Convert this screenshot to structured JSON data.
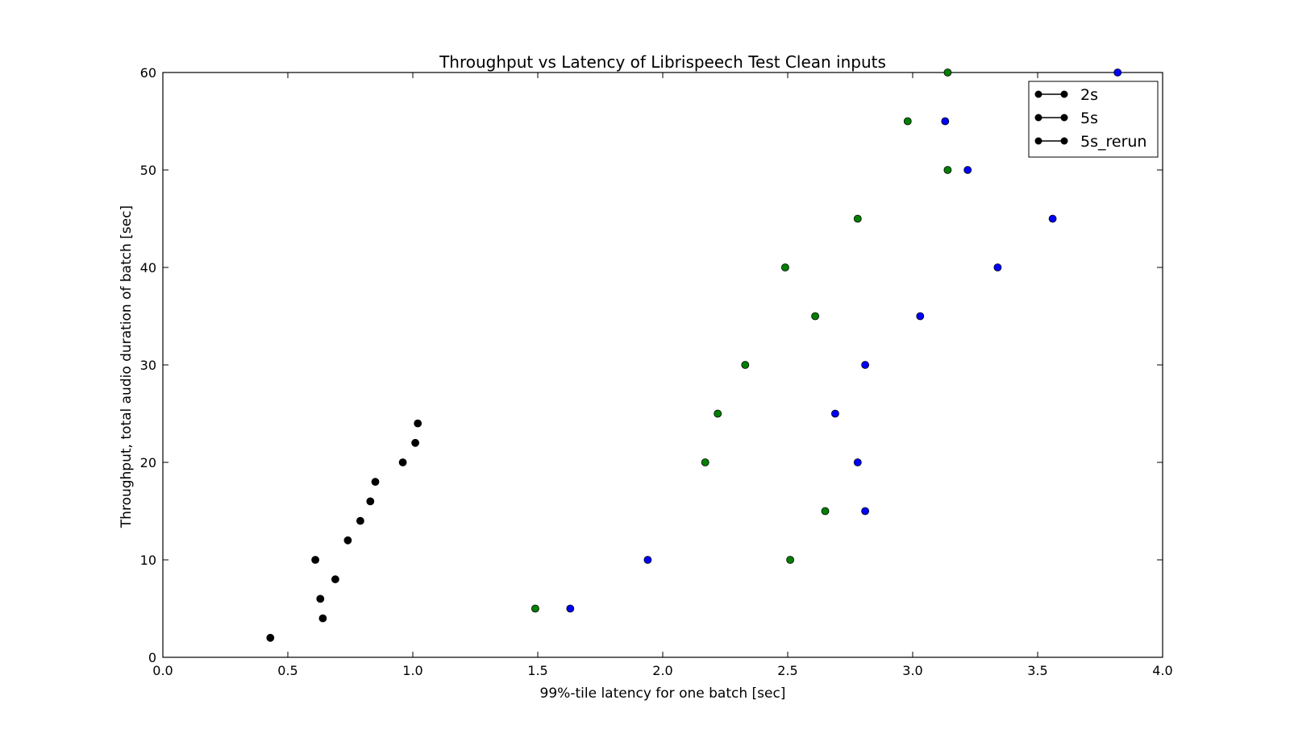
{
  "chart_data": {
    "type": "scatter",
    "title": "Throughput vs Latency of Librispeech Test Clean inputs",
    "xlabel": "99%-tile latency for one batch [sec]",
    "ylabel": "Throughput, total audio duration of batch [sec]",
    "xlim": [
      0.0,
      4.0
    ],
    "ylim": [
      0,
      60
    ],
    "xticks": [
      "0.0",
      "0.5",
      "1.0",
      "1.5",
      "2.0",
      "2.5",
      "3.0",
      "3.5",
      "4.0"
    ],
    "yticks": [
      "0",
      "10",
      "20",
      "30",
      "40",
      "50",
      "60"
    ],
    "grid": false,
    "legend_position": "top-right",
    "legend_marker_color": "#000000",
    "series": [
      {
        "name": "2s",
        "color": "#000000",
        "points": [
          [
            0.43,
            2
          ],
          [
            0.64,
            4
          ],
          [
            0.63,
            6
          ],
          [
            0.69,
            8
          ],
          [
            0.61,
            10
          ],
          [
            0.74,
            12
          ],
          [
            0.79,
            14
          ],
          [
            0.83,
            16
          ],
          [
            0.85,
            18
          ],
          [
            0.96,
            20
          ],
          [
            1.01,
            22
          ],
          [
            1.02,
            24
          ]
        ]
      },
      {
        "name": "5s",
        "color": "#0000ff",
        "points": [
          [
            1.63,
            5
          ],
          [
            1.94,
            10
          ],
          [
            2.81,
            15
          ],
          [
            2.78,
            20
          ],
          [
            2.69,
            25
          ],
          [
            2.81,
            30
          ],
          [
            3.03,
            35
          ],
          [
            3.34,
            40
          ],
          [
            3.56,
            45
          ],
          [
            3.22,
            50
          ],
          [
            3.13,
            55
          ],
          [
            3.82,
            60
          ]
        ]
      },
      {
        "name": "5s_rerun",
        "color": "#008000",
        "points": [
          [
            1.49,
            5
          ],
          [
            2.51,
            10
          ],
          [
            2.65,
            15
          ],
          [
            2.17,
            20
          ],
          [
            2.22,
            25
          ],
          [
            2.33,
            30
          ],
          [
            2.61,
            35
          ],
          [
            2.49,
            40
          ],
          [
            2.78,
            45
          ],
          [
            3.14,
            50
          ],
          [
            2.98,
            55
          ],
          [
            3.14,
            60
          ]
        ]
      }
    ]
  }
}
